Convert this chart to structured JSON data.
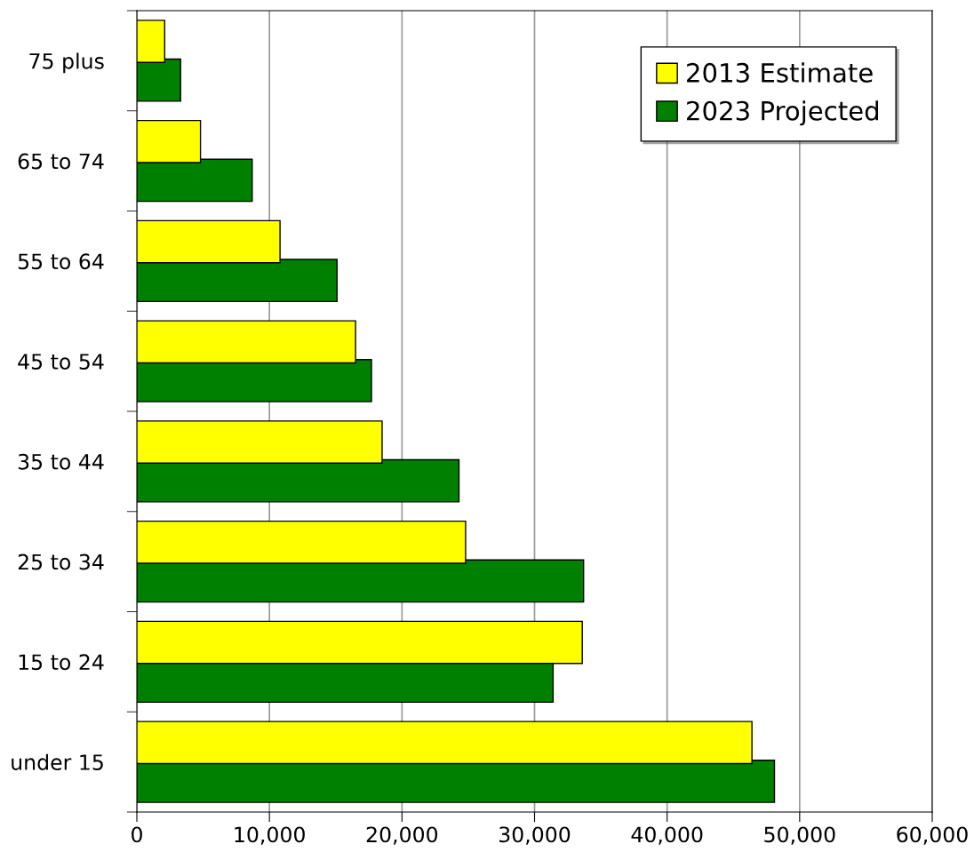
{
  "chart_data": {
    "type": "bar",
    "orientation": "horizontal",
    "categories": [
      "75 plus",
      "65 to 74",
      "55 to 64",
      "45 to 54",
      "35 to 44",
      "25 to 34",
      "15 to 24",
      "under 15"
    ],
    "series": [
      {
        "name": "2013 Estimate",
        "color": "#ffff00",
        "values": [
          2100,
          4800,
          10800,
          16500,
          18500,
          24800,
          33600,
          46400
        ]
      },
      {
        "name": "2023 Projected",
        "color": "#008000",
        "values": [
          3300,
          8700,
          15100,
          17700,
          24300,
          33700,
          31400,
          48100
        ]
      }
    ],
    "xlim": [
      0,
      60000
    ],
    "xticks": [
      {
        "value": 0,
        "label": "0"
      },
      {
        "value": 10000,
        "label": "10,000"
      },
      {
        "value": 20000,
        "label": "20,000"
      },
      {
        "value": 30000,
        "label": "30,000"
      },
      {
        "value": 40000,
        "label": "40,000"
      },
      {
        "value": 50000,
        "label": "50,000"
      },
      {
        "value": 60000,
        "label": "60,000"
      }
    ],
    "grid": "x",
    "legend": "top right"
  }
}
